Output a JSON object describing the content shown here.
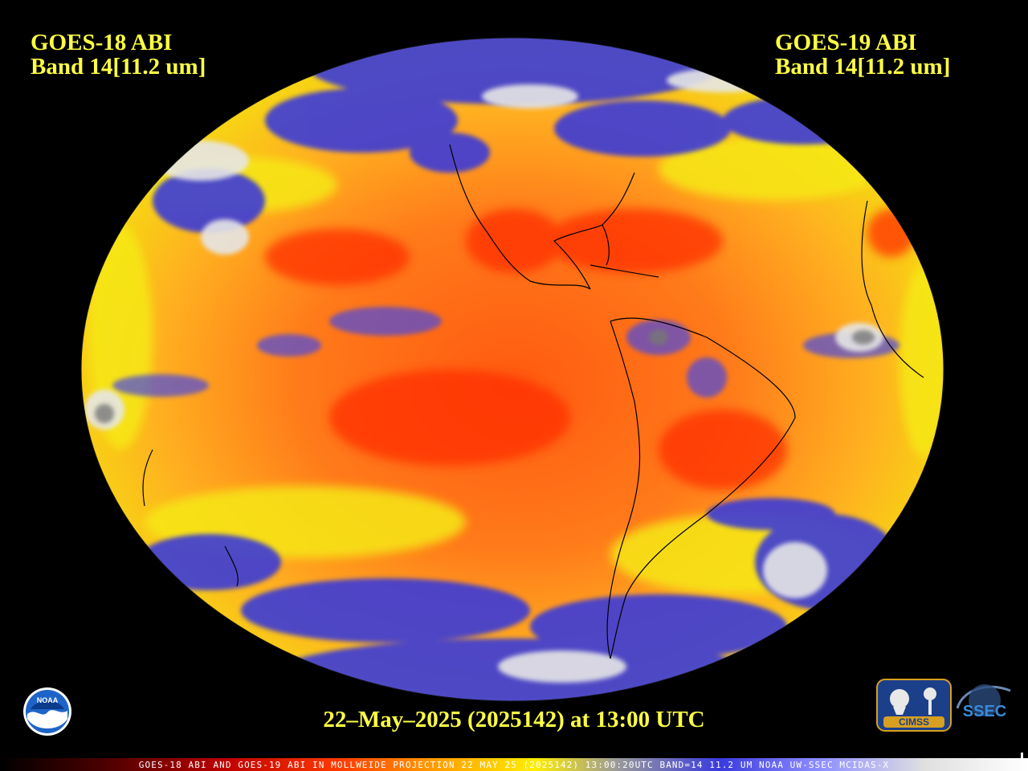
{
  "left_label": {
    "line1": "GOES-18 ABI",
    "line2": "Band 14[11.2 um]"
  },
  "right_label": {
    "line1": "GOES-19 ABI",
    "line2": "Band 14[11.2 um]"
  },
  "timestamp": "22–May–2025 (2025142) at 13:00 UTC",
  "footer": "GOES-18 ABI AND GOES-19 ABI IN MOLLWEIDE PROJECTION 22 MAY 25 (2025142) 13:00:20UTC BAND=14 11.2 UM NOAA UW-SSEC MCIDAS-X",
  "logos": {
    "noaa": "NOAA",
    "cimss": "CIMSS",
    "ssec": "SSEC"
  },
  "colors": {
    "text": "#ffff44",
    "background": "#000000",
    "warm": "#ff4a00",
    "cold_blue": "#3b3bd8",
    "cold_white": "#e8e8e8"
  }
}
